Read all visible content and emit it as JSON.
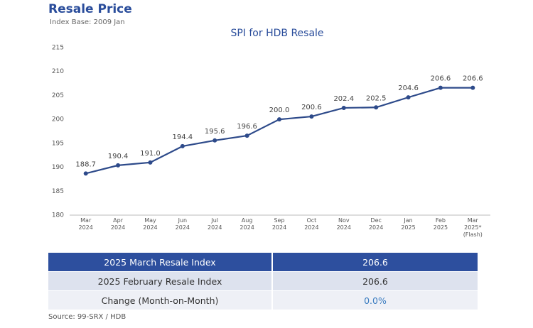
{
  "header": {
    "title": "Resale Price",
    "subtitle": "Index Base: 2009 Jan"
  },
  "chart_data": {
    "type": "line",
    "title": "SPI for HDB Resale",
    "categories": [
      "Mar\n2024",
      "Apr\n2024",
      "May\n2024",
      "Jun\n2024",
      "Jul\n2024",
      "Aug\n2024",
      "Sep\n2024",
      "Oct\n2024",
      "Nov\n2024",
      "Dec\n2024",
      "Jan\n2025",
      "Feb\n2025",
      "Mar\n2025*\n(Flash)"
    ],
    "values": [
      188.7,
      190.4,
      191.0,
      194.4,
      195.6,
      196.6,
      200.0,
      200.6,
      202.4,
      202.5,
      204.6,
      206.6,
      206.6
    ],
    "value_labels": [
      "188.7",
      "190.4",
      "191.0",
      "194.4",
      "195.6",
      "196.6",
      "200.0",
      "200.6",
      "202.4",
      "202.5",
      "204.6",
      "206.6",
      "206.6"
    ],
    "color": "#2d4a8a",
    "ylim": [
      180,
      215
    ],
    "yticks": [
      180,
      185,
      190,
      195,
      200,
      205,
      210,
      215
    ],
    "grid": false
  },
  "table": {
    "rows": [
      [
        "2025 March Resale Index",
        "206.6"
      ],
      [
        "2025 February Resale Index",
        "206.6"
      ],
      [
        "Change (Month-on-Month)",
        "0.0%"
      ]
    ]
  },
  "footer": {
    "source": "Source: 99-SRX / HDB"
  }
}
